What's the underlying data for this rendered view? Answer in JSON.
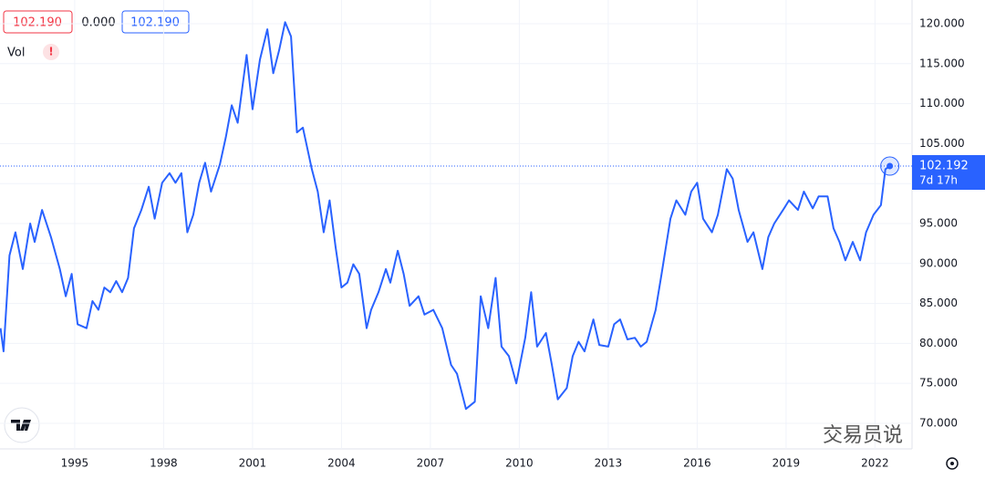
{
  "header": {
    "open": "102.190",
    "change": "0.000",
    "close": "102.190",
    "volume_label": "Vol",
    "volume_alert": "!"
  },
  "chart_data": {
    "type": "line",
    "color": "#2962ff",
    "x": [
      1992.5,
      1992.6,
      1992.8,
      1993.0,
      1993.25,
      1993.5,
      1993.65,
      1993.9,
      1994.2,
      1994.5,
      1994.7,
      1994.9,
      1995.1,
      1995.4,
      1995.6,
      1995.8,
      1996.0,
      1996.2,
      1996.4,
      1996.6,
      1996.8,
      1997.0,
      1997.25,
      1997.5,
      1997.7,
      1997.95,
      1998.2,
      1998.4,
      1998.6,
      1998.8,
      1999.0,
      1999.2,
      1999.4,
      1999.6,
      1999.9,
      2000.1,
      2000.3,
      2000.5,
      2000.8,
      2001.0,
      2001.25,
      2001.5,
      2001.7,
      2001.9,
      2002.1,
      2002.3,
      2002.5,
      2002.7,
      2003.0,
      2003.2,
      2003.4,
      2003.6,
      2003.8,
      2004.0,
      2004.2,
      2004.4,
      2004.6,
      2004.85,
      2005.0,
      2005.25,
      2005.5,
      2005.65,
      2005.9,
      2006.1,
      2006.3,
      2006.6,
      2006.8,
      2007.1,
      2007.4,
      2007.7,
      2007.9,
      2008.2,
      2008.5,
      2008.7,
      2008.95,
      2009.2,
      2009.4,
      2009.65,
      2009.9,
      2010.2,
      2010.4,
      2010.6,
      2010.9,
      2011.1,
      2011.3,
      2011.6,
      2011.8,
      2012.0,
      2012.2,
      2012.5,
      2012.7,
      2013.0,
      2013.2,
      2013.4,
      2013.65,
      2013.9,
      2014.1,
      2014.3,
      2014.6,
      2014.8,
      2015.1,
      2015.3,
      2015.6,
      2015.8,
      2016.0,
      2016.2,
      2016.5,
      2016.7,
      2017.0,
      2017.2,
      2017.4,
      2017.7,
      2017.9,
      2018.2,
      2018.4,
      2018.6,
      2018.9,
      2019.1,
      2019.4,
      2019.6,
      2019.9,
      2020.1,
      2020.4,
      2020.6,
      2020.8,
      2021.0,
      2021.25,
      2021.5,
      2021.7,
      2021.95,
      2022.2,
      2022.35,
      2022.5
    ],
    "values": [
      81.9,
      79,
      91,
      93.9,
      89.3,
      95,
      92.7,
      96.7,
      93.3,
      89.3,
      85.9,
      88.7,
      82.4,
      81.9,
      85.3,
      84.2,
      87,
      86.4,
      87.8,
      86.4,
      88.2,
      94.4,
      96.7,
      99.6,
      95.6,
      100.1,
      101.3,
      100.1,
      101.3,
      93.9,
      96.1,
      100.1,
      102.6,
      99,
      102.4,
      105.8,
      109.8,
      107.6,
      116.1,
      109.3,
      115.5,
      119.3,
      113.8,
      116.7,
      120.2,
      118.4,
      106.4,
      107,
      101.8,
      99,
      93.9,
      97.9,
      92.1,
      87,
      87.6,
      89.9,
      88.7,
      81.9,
      84.2,
      86.4,
      89.3,
      87.6,
      91.6,
      88.7,
      84.7,
      85.9,
      83.6,
      84.2,
      81.9,
      77.3,
      76.2,
      71.8,
      72.7,
      85.9,
      81.9,
      88.2,
      79.6,
      78.4,
      75,
      80.7,
      86.4,
      79.6,
      81.3,
      77.3,
      73,
      74.4,
      78.4,
      80.2,
      79,
      83,
      79.8,
      79.6,
      82.4,
      83,
      80.5,
      80.7,
      79.6,
      80.2,
      84.2,
      88.7,
      95.6,
      97.9,
      96.1,
      99,
      100.1,
      95.6,
      93.9,
      96.1,
      101.8,
      100.6,
      96.7,
      92.7,
      93.9,
      89.3,
      93.3,
      95,
      96.7,
      97.9,
      96.7,
      99,
      96.9,
      98.4,
      98.4,
      94.4,
      92.7,
      90.4,
      92.7,
      90.4,
      93.9,
      96.1,
      97.3,
      101.8,
      102.19
    ],
    "xlim": [
      1992.48,
      2023.25
    ],
    "xticks": [
      1995,
      1998,
      2001,
      2004,
      2007,
      2010,
      2013,
      2016,
      2019,
      2022
    ],
    "ylim": [
      66.8,
      122.97
    ],
    "yticks": [
      {
        "value": 70,
        "label": "70.000"
      },
      {
        "value": 75,
        "label": "75.000"
      },
      {
        "value": 80,
        "label": "80.000"
      },
      {
        "value": 85,
        "label": "85.000"
      },
      {
        "value": 90,
        "label": "90.000"
      },
      {
        "value": 95,
        "label": "95.000"
      },
      {
        "value": 100,
        "label": "100.000"
      },
      {
        "value": 105,
        "label": "105.000"
      },
      {
        "value": 110,
        "label": "110.000"
      },
      {
        "value": 115,
        "label": "115.000"
      },
      {
        "value": 120,
        "label": "120.000"
      }
    ],
    "last_price": 102.192,
    "countdown": "7d 17h",
    "watermark": "交易员说"
  }
}
